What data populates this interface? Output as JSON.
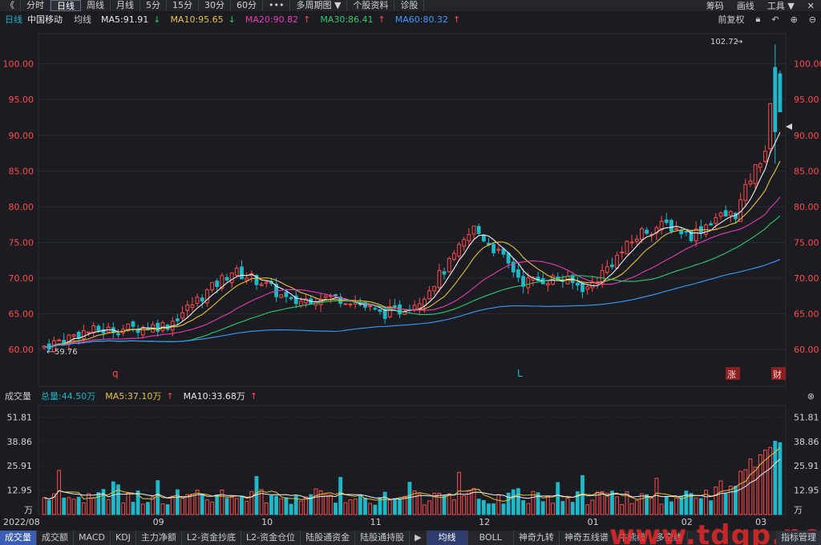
{
  "toolbar": {
    "back_icon": "double-chevron-left-icon",
    "items": [
      "分时",
      "日线",
      "周线",
      "月线",
      "5分",
      "15分",
      "30分",
      "60分",
      "•••",
      "多周期图",
      "个股资料",
      "诊股"
    ],
    "active": "日线",
    "dropdown_marker": "▼",
    "right_items": [
      "筹码",
      "画线",
      "工具"
    ]
  },
  "info": {
    "period": "日线",
    "stock_name": "中国移动",
    "ma_label": "均线",
    "ma5": "MA5:91.91",
    "ma10": "MA10:95.65",
    "ma20": "MA20:90.82",
    "ma30": "MA30:86.41",
    "ma60": "MA60:80.32",
    "fq_label": "前复权"
  },
  "price_axis": {
    "labels": [
      "100.00",
      "95.00",
      "90.00",
      "85.00",
      "80.00",
      "75.00",
      "70.00",
      "65.00",
      "60.00"
    ],
    "high_label": "102.72",
    "low_label": "59.76"
  },
  "markers": {
    "q": "q",
    "L": "L",
    "zhang": "涨",
    "cai": "财"
  },
  "volume_header": {
    "title": "成交量",
    "total": "总量:44.50万",
    "ma5": "MA5:37.10万",
    "ma10": "MA10:33.68万"
  },
  "volume_axis": {
    "labels": [
      "51.81",
      "38.86",
      "25.91",
      "12.95"
    ],
    "unit": "万"
  },
  "x_axis": {
    "labels": [
      "2022/08",
      "09",
      "10",
      "11",
      "12",
      "01",
      "02",
      "03"
    ]
  },
  "tabs": [
    "成交量",
    "成交额",
    "MACD",
    "KDJ",
    "主力净额",
    "L2-资金抄底",
    "L2-资金仓位",
    "陆股通资金",
    "陆股通持股"
  ],
  "tabs_right": [
    "均线",
    "BOLL",
    "神奇九转",
    "神奇五线谱",
    "牛熊线",
    "多空线"
  ],
  "tab_end": "指标管理",
  "watermark": "www.tdgp.net",
  "colors": {
    "up": "#ff4a4a",
    "down": "#1fb8c9",
    "ma5": "#f2f2f2",
    "ma10": "#e6c23a",
    "ma20": "#e63bb4",
    "ma30": "#2fc86b",
    "ma60": "#3b9bff"
  },
  "chart_data": {
    "type": "candlestick",
    "title": "中国移动 日线",
    "ylim": [
      58,
      104
    ],
    "x_ticks": [
      "2022/08",
      "09",
      "10",
      "11",
      "12",
      "01",
      "02",
      "03"
    ],
    "last_values": {
      "MA5": 91.91,
      "MA10": 95.65,
      "MA20": 90.82,
      "MA30": 86.41,
      "MA60": 80.32
    },
    "high": 102.72,
    "low": 59.76,
    "volume_ylim": [
      0,
      58
    ],
    "volume_ticks": [
      12.95,
      25.91,
      38.86,
      51.81
    ]
  }
}
